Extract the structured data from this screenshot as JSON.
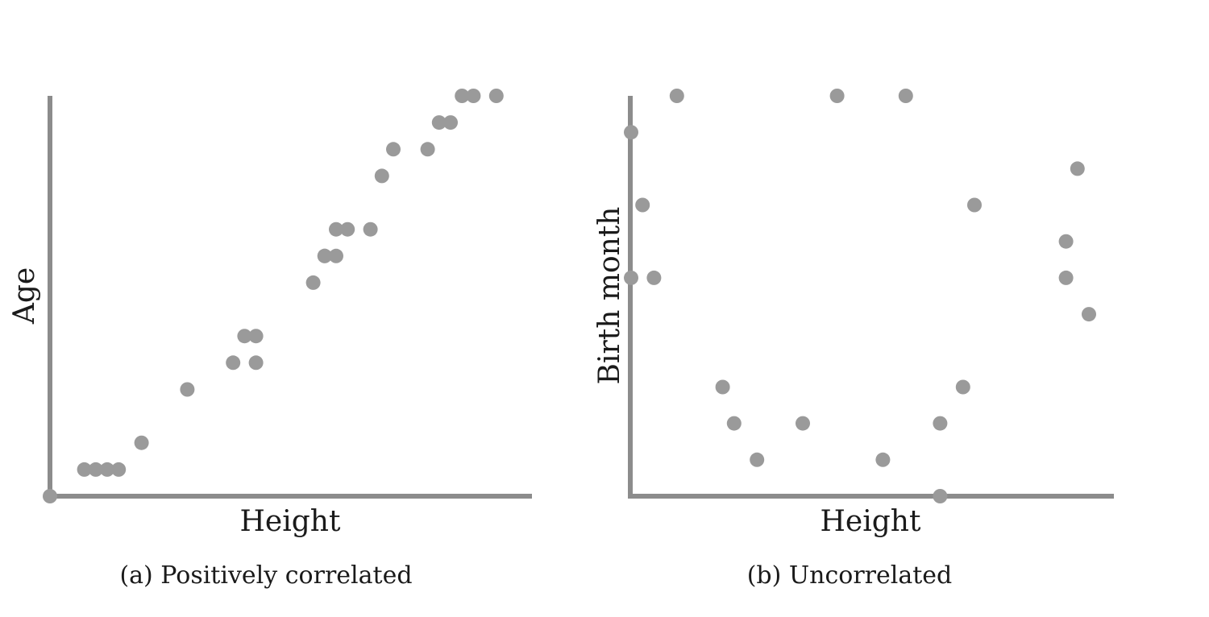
{
  "chart_data": [
    {
      "type": "scatter",
      "xlabel": "Height",
      "ylabel": "Age",
      "caption": "(a) Positively correlated",
      "xlim": [
        0,
        42
      ],
      "ylim": [
        0,
        30
      ],
      "grid": false,
      "series": [
        {
          "x": [
            0,
            3,
            4,
            5,
            6,
            8,
            12,
            16,
            17,
            18,
            18,
            23,
            24,
            24,
            25,
            25,
            26,
            28,
            29,
            30,
            33,
            34,
            35,
            36,
            37,
            39
          ],
          "y": [
            0,
            2,
            2,
            2,
            2,
            4,
            8,
            10,
            12,
            12,
            10,
            16,
            18,
            18,
            18,
            20,
            20,
            20,
            24,
            26,
            26,
            28,
            28,
            30,
            30,
            30
          ]
        }
      ]
    },
    {
      "type": "scatter",
      "xlabel": "Height",
      "ylabel": "Birth month",
      "caption": "(b) Uncorrelated",
      "xlim": [
        0,
        42
      ],
      "ylim": [
        0,
        11
      ],
      "grid": false,
      "series": [
        {
          "x": [
            0,
            1,
            0,
            2,
            4,
            8,
            9,
            11,
            15,
            18,
            22,
            24,
            27,
            27,
            29,
            30,
            38,
            38,
            39,
            40
          ],
          "y": [
            10,
            8,
            6,
            6,
            11,
            3,
            2,
            1,
            2,
            11,
            1,
            11,
            0,
            2,
            3,
            8,
            7,
            6,
            9,
            5
          ]
        }
      ]
    }
  ]
}
